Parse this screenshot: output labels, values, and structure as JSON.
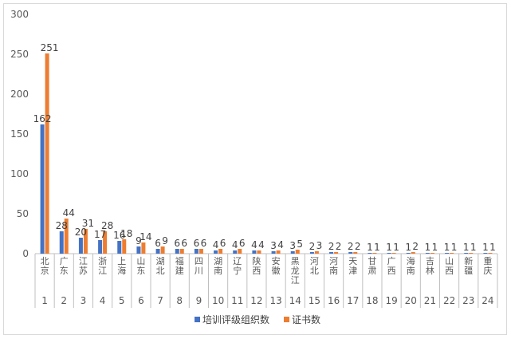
{
  "chart_data": {
    "type": "bar",
    "categories": [
      "北京",
      "广东",
      "江苏",
      "浙江",
      "上海",
      "山东",
      "湖北",
      "福建",
      "四川",
      "湖南",
      "辽宁",
      "陕西",
      "安徽",
      "黑龙江",
      "河北",
      "河南",
      "天津",
      "甘肃",
      "广西",
      "海南",
      "吉林",
      "山西",
      "新疆",
      "重庆"
    ],
    "index_labels": [
      "1",
      "2",
      "3",
      "4",
      "5",
      "6",
      "7",
      "8",
      "9",
      "10",
      "11",
      "12",
      "13",
      "14",
      "15",
      "16",
      "17",
      "18",
      "19",
      "20",
      "21",
      "22",
      "23",
      "24"
    ],
    "series": [
      {
        "name": "培训评级组织数",
        "color": "#4472c4",
        "values": [
          162,
          28,
          20,
          17,
          16,
          9,
          6,
          6,
          6,
          4,
          4,
          4,
          3,
          3,
          2,
          2,
          2,
          1,
          1,
          1,
          1,
          1,
          1,
          1
        ]
      },
      {
        "name": "证书数",
        "color": "#ed7d31",
        "values": [
          251,
          44,
          31,
          28,
          18,
          14,
          9,
          6,
          6,
          6,
          6,
          4,
          4,
          5,
          3,
          2,
          2,
          1,
          1,
          2,
          1,
          1,
          1,
          1
        ]
      }
    ],
    "ylim": [
      0,
      300
    ],
    "yticks": [
      "0",
      "50",
      "100",
      "150",
      "200",
      "250",
      "300"
    ],
    "grid": false,
    "legend_position": "bottom"
  }
}
